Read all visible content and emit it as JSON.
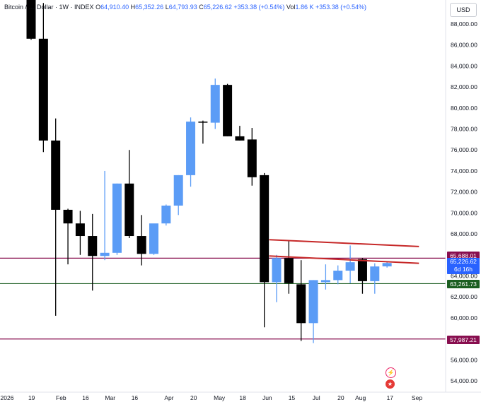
{
  "header": {
    "symbol": "Bitcoin / … Dollar",
    "interval": "1W",
    "exchange": "INDEX",
    "open_label": "O",
    "open": "64,910.40",
    "high_label": "H",
    "high": "65,352.26",
    "low_label": "L",
    "low": "64,793.93",
    "close_label": "C",
    "close": "65,226.62",
    "change": "+353.38 (+0.54%)",
    "vol_label": "Vol",
    "vol": "1.86 K",
    "change2": "+353.38 (+0.54%)"
  },
  "currency_button": "USD",
  "price_tags": {
    "upper_level": "65,688.01",
    "current_price": "65,226.62",
    "countdown": "6d 16h",
    "middle_level": "63,261.73",
    "lower_level": "57,987.21"
  },
  "event_icons": [
    "lightning-icon",
    "us-flag-icon"
  ],
  "colors": {
    "up": "#5b9cf6",
    "down": "#000000",
    "resistance_lines": "#c62828",
    "upper_hline": "#880e4f",
    "middle_hline": "#1b5e20",
    "lower_hline": "#880e4f",
    "current_price_tag": "#2962ff"
  },
  "chart_data": {
    "type": "candlestick",
    "interval": "1W",
    "y_axis": {
      "min": 53000,
      "max": 89500,
      "ticks": [
        54000,
        56000,
        58000,
        60000,
        62000,
        64000,
        66000,
        68000,
        70000,
        72000,
        74000,
        76000,
        78000,
        80000,
        82000,
        84000,
        86000,
        88000
      ],
      "tick_labels": [
        "54,000.00",
        "56,000.00",
        "58,000.00",
        "60,000.00",
        "62,000.00",
        "64,000.00",
        "66,000.00",
        "68,000.00",
        "70,000.00",
        "72,000.00",
        "74,000.00",
        "76,000.00",
        "78,000.00",
        "80,000.00",
        "82,000.00",
        "84,000.00",
        "86,000.00",
        "88,000.00"
      ]
    },
    "x_axis": {
      "labels": [
        "2026",
        "19",
        "Feb",
        "16",
        "Mar",
        "16",
        "Apr",
        "20",
        "May",
        "18",
        "Jun",
        "15",
        "Jul",
        "20",
        "Aug",
        "17",
        "Sep"
      ],
      "label_week_index": [
        0,
        2,
        4.4,
        6.4,
        8.4,
        10.4,
        13.2,
        15.2,
        17.3,
        19.2,
        21.2,
        23.2,
        25.2,
        27.2,
        28.8,
        31.2,
        33.4
      ]
    },
    "candles": [
      {
        "o": 96000,
        "h": 97000,
        "l": 86500,
        "c": 86600
      },
      {
        "o": 86600,
        "h": 90000,
        "l": 75800,
        "c": 76900
      },
      {
        "o": 76900,
        "h": 79000,
        "l": 60200,
        "c": 70300
      },
      {
        "o": 70300,
        "h": 70400,
        "l": 65100,
        "c": 69000
      },
      {
        "o": 69000,
        "h": 70200,
        "l": 66000,
        "c": 67800
      },
      {
        "o": 67800,
        "h": 69900,
        "l": 62600,
        "c": 65900
      },
      {
        "o": 65900,
        "h": 74000,
        "l": 65500,
        "c": 66200
      },
      {
        "o": 66200,
        "h": 72800,
        "l": 66000,
        "c": 72800
      },
      {
        "o": 72800,
        "h": 76000,
        "l": 67600,
        "c": 67800
      },
      {
        "o": 67800,
        "h": 69800,
        "l": 65000,
        "c": 66100
      },
      {
        "o": 66100,
        "h": 68900,
        "l": 66000,
        "c": 69000
      },
      {
        "o": 69000,
        "h": 70800,
        "l": 68800,
        "c": 70700
      },
      {
        "o": 70700,
        "h": 73600,
        "l": 69800,
        "c": 73600
      },
      {
        "o": 73600,
        "h": 79100,
        "l": 72500,
        "c": 78700
      },
      {
        "o": 78700,
        "h": 78800,
        "l": 76600,
        "c": 78600
      },
      {
        "o": 78600,
        "h": 82800,
        "l": 78000,
        "c": 82200
      },
      {
        "o": 82200,
        "h": 82300,
        "l": 77300,
        "c": 77300
      },
      {
        "o": 77300,
        "h": 78300,
        "l": 76900,
        "c": 76900
      },
      {
        "o": 77000,
        "h": 78100,
        "l": 72600,
        "c": 73400
      },
      {
        "o": 73600,
        "h": 73800,
        "l": 59100,
        "c": 63400
      },
      {
        "o": 63400,
        "h": 66000,
        "l": 61500,
        "c": 65700
      },
      {
        "o": 65700,
        "h": 67400,
        "l": 62300,
        "c": 63300
      },
      {
        "o": 63200,
        "h": 65500,
        "l": 57800,
        "c": 59500
      },
      {
        "o": 59500,
        "h": 63600,
        "l": 57600,
        "c": 63600
      },
      {
        "o": 63400,
        "h": 65100,
        "l": 62700,
        "c": 63600
      },
      {
        "o": 63600,
        "h": 65000,
        "l": 63200,
        "c": 64500
      },
      {
        "o": 64500,
        "h": 66900,
        "l": 63300,
        "c": 65300
      },
      {
        "o": 65600,
        "h": 65700,
        "l": 62300,
        "c": 63500
      },
      {
        "o": 63500,
        "h": 65200,
        "l": 62300,
        "c": 64900
      },
      {
        "o": 64910.4,
        "h": 65352.26,
        "l": 64793.93,
        "c": 65226.62
      }
    ],
    "horizontal_lines": [
      {
        "price": 65688.01,
        "color": "#880e4f"
      },
      {
        "price": 63261.73,
        "color": "#1b5e20"
      },
      {
        "price": 57987.21,
        "color": "#880e4f"
      }
    ],
    "trend_lines": [
      {
        "from": {
          "week": 19.4,
          "price": 67450
        },
        "to": {
          "week": 31.6,
          "price": 66800
        },
        "color": "#c62828"
      },
      {
        "from": {
          "week": 19.4,
          "price": 65900
        },
        "to": {
          "week": 31.6,
          "price": 65200
        },
        "color": "#c62828"
      }
    ]
  }
}
